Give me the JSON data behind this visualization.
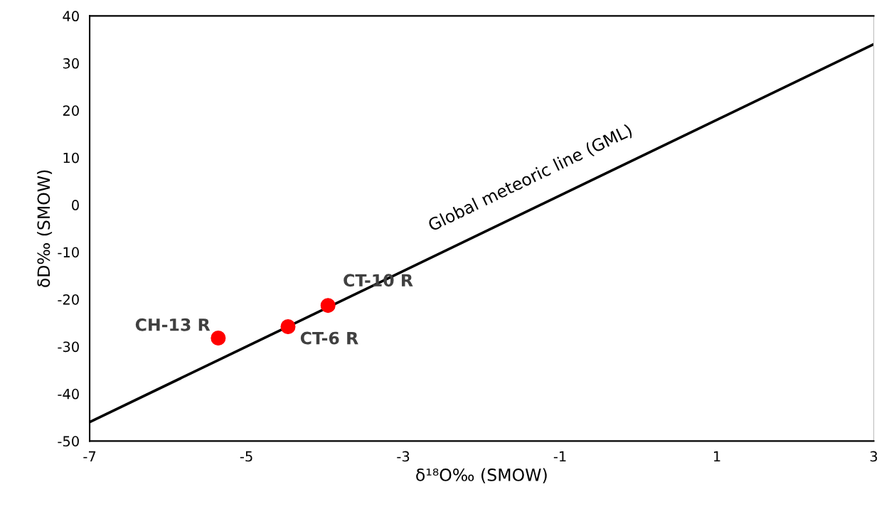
{
  "chart_data": {
    "type": "scatter",
    "xlabel": "δ¹⁸O‰ (SMOW)",
    "ylabel": "δD‰ (SMOW)",
    "series": [
      {
        "type": "line",
        "color": "#000000",
        "x": [
          -7,
          3
        ],
        "values": [
          -46,
          34
        ],
        "marker": "none",
        "line_style": "solid"
      },
      {
        "color": "#ff0000",
        "x": [
          -5.36,
          -4.47,
          -3.96
        ],
        "values": [
          -28.2,
          -25.8,
          -21.3
        ],
        "marker": "circle"
      }
    ],
    "annotations": [
      "Global meteoric line (GML)",
      {
        "text": "CH-13 R",
        "x": -5.36,
        "y": -28.2
      },
      {
        "text": "CT-6 R",
        "x": -4.47,
        "y": -25.8
      },
      {
        "text": "CT-10 R",
        "x": -3.96,
        "y": -21.3
      }
    ],
    "xlim": [
      -7,
      3
    ],
    "xticks": [
      -7,
      -5,
      -3,
      -1,
      1,
      3
    ],
    "ylim": [
      -50,
      40
    ],
    "yticks": [
      -50,
      -40,
      -30,
      -20,
      -10,
      0,
      10,
      20,
      30,
      40
    ],
    "grid": false,
    "legend": false
  }
}
